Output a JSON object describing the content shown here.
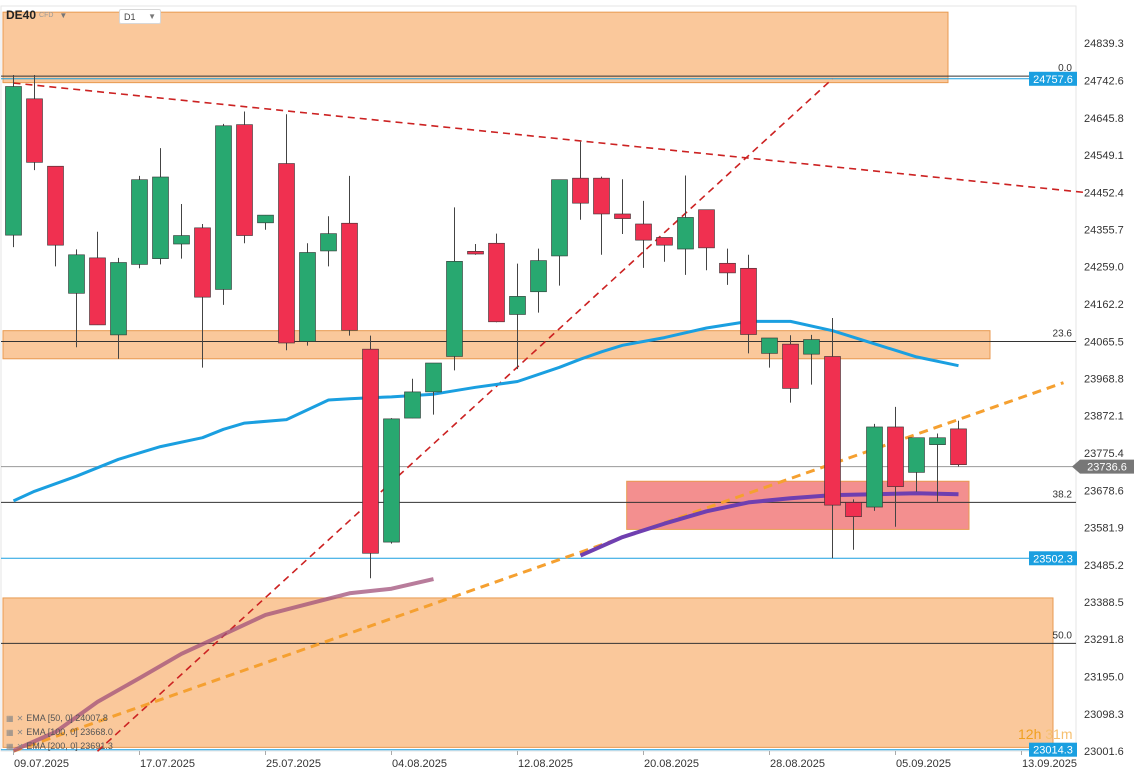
{
  "header": {
    "symbol": "DE40",
    "symbol_sub": "CFD",
    "timeframe": "D1"
  },
  "legend": [
    {
      "label": "EMA [50, 0] 24007.8",
      "color": "#1a9fe0"
    },
    {
      "label": "EMA [100, 0] 23668.0",
      "color": "#6f3fb0"
    },
    {
      "label": "EMA [200, 0] 23691.3",
      "color": "#2a3f9e"
    }
  ],
  "timer": {
    "hours": "12h",
    "minutes": "31m"
  },
  "chart_data": {
    "type": "candlestick",
    "ylim": [
      23001.6,
      24936.0
    ],
    "y_ticks": [
      "24839.3",
      "24742.6",
      "24645.8",
      "24549.1",
      "24452.4",
      "24355.7",
      "24259.0",
      "24162.2",
      "24065.5",
      "23968.8",
      "23872.1",
      "23775.4",
      "23678.6",
      "23581.9",
      "23485.2",
      "23388.5",
      "23291.8",
      "23195.0",
      "23098.3",
      "23001.6"
    ],
    "x_labels": [
      {
        "label": "09.07.2025",
        "i": 0
      },
      {
        "label": "17.07.2025",
        "i": 6
      },
      {
        "label": "25.07.2025",
        "i": 12
      },
      {
        "label": "04.08.2025",
        "i": 18
      },
      {
        "label": "12.08.2025",
        "i": 24
      },
      {
        "label": "20.08.2025",
        "i": 30
      },
      {
        "label": "28.08.2025",
        "i": 36
      },
      {
        "label": "05.09.2025",
        "i": 42
      },
      {
        "label": "13.09.2025",
        "i": 48
      }
    ],
    "candles": [
      {
        "o": 24341,
        "h": 24757,
        "l": 24310,
        "c": 24727
      },
      {
        "o": 24695,
        "h": 24757,
        "l": 24510,
        "c": 24530
      },
      {
        "o": 24520,
        "h": 24515,
        "l": 24260,
        "c": 24315
      },
      {
        "o": 24190,
        "h": 24304,
        "l": 24050,
        "c": 24290
      },
      {
        "o": 24282,
        "h": 24350,
        "l": 24120,
        "c": 24108
      },
      {
        "o": 24082,
        "h": 24282,
        "l": 24020,
        "c": 24270
      },
      {
        "o": 24265,
        "h": 24495,
        "l": 24255,
        "c": 24485
      },
      {
        "o": 24280,
        "h": 24567,
        "l": 24265,
        "c": 24492
      },
      {
        "o": 24318,
        "h": 24422,
        "l": 24280,
        "c": 24340
      },
      {
        "o": 24360,
        "h": 24370,
        "l": 23997,
        "c": 24180
      },
      {
        "o": 24200,
        "h": 24630,
        "l": 24160,
        "c": 24625
      },
      {
        "o": 24628,
        "h": 24662,
        "l": 24320,
        "c": 24340
      },
      {
        "o": 24373,
        "h": 24391,
        "l": 24355,
        "c": 24393
      },
      {
        "o": 24527,
        "h": 24655,
        "l": 24042,
        "c": 24061
      },
      {
        "o": 24065,
        "h": 24320,
        "l": 24054,
        "c": 24296
      },
      {
        "o": 24300,
        "h": 24390,
        "l": 24260,
        "c": 24345
      },
      {
        "o": 24372,
        "h": 24495,
        "l": 24080,
        "c": 24094
      },
      {
        "o": 24045,
        "h": 24080,
        "l": 23450,
        "c": 23515
      },
      {
        "o": 23544,
        "h": 23866,
        "l": 23540,
        "c": 23864
      },
      {
        "o": 23866,
        "h": 23968,
        "l": 23870,
        "c": 23934
      },
      {
        "o": 23934,
        "h": 24005,
        "l": 23875,
        "c": 24009
      },
      {
        "o": 24026,
        "h": 24413,
        "l": 23990,
        "c": 24273
      },
      {
        "o": 24299,
        "h": 24318,
        "l": 24290,
        "c": 24292
      },
      {
        "o": 24320,
        "h": 24345,
        "l": 24115,
        "c": 24116
      },
      {
        "o": 24135,
        "h": 24267,
        "l": 23993,
        "c": 24182
      },
      {
        "o": 24194,
        "h": 24306,
        "l": 24140,
        "c": 24275
      },
      {
        "o": 24287,
        "h": 24485,
        "l": 24210,
        "c": 24485
      },
      {
        "o": 24489,
        "h": 24584,
        "l": 24381,
        "c": 24424
      },
      {
        "o": 24489,
        "h": 24493,
        "l": 24290,
        "c": 24396
      },
      {
        "o": 24396,
        "h": 24486,
        "l": 24344,
        "c": 24384
      },
      {
        "o": 24370,
        "h": 24430,
        "l": 24256,
        "c": 24328
      },
      {
        "o": 24335,
        "h": 24326,
        "l": 24272,
        "c": 24315
      },
      {
        "o": 24305,
        "h": 24496,
        "l": 24238,
        "c": 24387
      },
      {
        "o": 24407,
        "h": 24406,
        "l": 24250,
        "c": 24308
      },
      {
        "o": 24268,
        "h": 24306,
        "l": 24212,
        "c": 24243
      },
      {
        "o": 24255,
        "h": 24290,
        "l": 24034,
        "c": 24083
      },
      {
        "o": 24034,
        "h": 24068,
        "l": 23997,
        "c": 24074
      },
      {
        "o": 24058,
        "h": 24081,
        "l": 23906,
        "c": 23943
      },
      {
        "o": 24032,
        "h": 24082,
        "l": 23953,
        "c": 24070
      },
      {
        "o": 24026,
        "h": 24126,
        "l": 23502,
        "c": 23640
      },
      {
        "o": 23647,
        "h": 23655,
        "l": 23524,
        "c": 23610
      },
      {
        "o": 23635,
        "h": 23851,
        "l": 23625,
        "c": 23843
      },
      {
        "o": 23843,
        "h": 23895,
        "l": 23584,
        "c": 23688
      },
      {
        "o": 23725,
        "h": 23815,
        "l": 23675,
        "c": 23815
      },
      {
        "o": 23797,
        "h": 23826,
        "l": 23649,
        "c": 23815
      },
      {
        "o": 23838,
        "h": 23859,
        "l": 23740,
        "c": 23745
      }
    ],
    "ema50": [
      [
        0,
        23651
      ],
      [
        1,
        23676
      ],
      [
        3,
        23715
      ],
      [
        5,
        23759
      ],
      [
        7,
        23792
      ],
      [
        9,
        23815
      ],
      [
        10,
        23837
      ],
      [
        11,
        23853
      ],
      [
        13,
        23862
      ],
      [
        15,
        23913
      ],
      [
        16,
        23916
      ],
      [
        17,
        23919
      ],
      [
        18,
        23921
      ],
      [
        20,
        23928
      ],
      [
        22,
        23946
      ],
      [
        24,
        23961
      ],
      [
        26,
        23998
      ],
      [
        27,
        24019
      ],
      [
        28,
        24038
      ],
      [
        29,
        24055
      ],
      [
        31,
        24075
      ],
      [
        33,
        24100
      ],
      [
        35,
        24117
      ],
      [
        37,
        24117
      ],
      [
        39,
        24093
      ],
      [
        41,
        24059
      ],
      [
        43,
        24025
      ],
      [
        45,
        24002
      ]
    ],
    "ema100": [
      [
        27,
        23509
      ],
      [
        29,
        23557
      ],
      [
        31,
        23592
      ],
      [
        33,
        23624
      ],
      [
        35,
        23647
      ],
      [
        37,
        23658
      ],
      [
        39,
        23666
      ],
      [
        41,
        23668
      ],
      [
        43,
        23671
      ],
      [
        45,
        23668
      ]
    ],
    "ema100_fill": [
      [
        0,
        23003
      ],
      [
        2,
        23051
      ],
      [
        4,
        23129
      ],
      [
        6,
        23191
      ],
      [
        8,
        23254
      ],
      [
        10,
        23304
      ],
      [
        12,
        23355
      ],
      [
        14,
        23383
      ],
      [
        16,
        23411
      ],
      [
        18,
        23423
      ],
      [
        20,
        23448
      ]
    ],
    "trend_lines": [
      {
        "p1": [
          0,
          24736
        ],
        "p2": [
          51,
          24452
        ],
        "color": "#cc2222",
        "dash": true
      },
      {
        "p1": [
          4,
          23001
        ],
        "p2": [
          39,
          24747
        ],
        "color": "#cc2222",
        "dash": true
      },
      {
        "p1": [
          0,
          23001
        ],
        "p2": [
          50,
          23958
        ],
        "color": "#f5a030",
        "dash": true,
        "width": 3
      }
    ],
    "zones": [
      {
        "i1": -0.5,
        "i2": 44.5,
        "y1": 24920,
        "y2": 24737,
        "color": "#f8b070"
      },
      {
        "i1": -0.5,
        "i2": 46.5,
        "y1": 24093,
        "y2": 24020,
        "color": "#f8b070"
      },
      {
        "i1": 29.2,
        "i2": 45.5,
        "y1": 23702,
        "y2": 23577,
        "color": "#ee6060"
      },
      {
        "i1": -0.5,
        "i2": 49.5,
        "y1": 23399,
        "y2": 23011,
        "color": "#f8b070"
      }
    ],
    "h_lines": [
      {
        "y": 24754,
        "color": "#333333",
        "label": "0.0"
      },
      {
        "y": 24747,
        "color": "#1a9fe0",
        "tag": "24757.6"
      },
      {
        "y": 24065,
        "color": "#333333",
        "label": "23.6"
      },
      {
        "y": 23740,
        "color": "#999999",
        "tag": "23736.6",
        "tag_color": "#777777"
      },
      {
        "y": 23647,
        "color": "#333333",
        "label": "38.2"
      },
      {
        "y": 23502,
        "color": "#1a9fe0",
        "tag": "23502.3"
      },
      {
        "y": 23281,
        "color": "#333333",
        "label": "50.0"
      },
      {
        "y": 23005,
        "color": "#1a9fe0",
        "tag": "23014.3"
      }
    ],
    "colors": {
      "up": "#28a870",
      "down": "#f03050",
      "ema50": "#1a9fe0",
      "ema100": "#6f3fb0",
      "ema200": "#2a3f9e"
    }
  }
}
